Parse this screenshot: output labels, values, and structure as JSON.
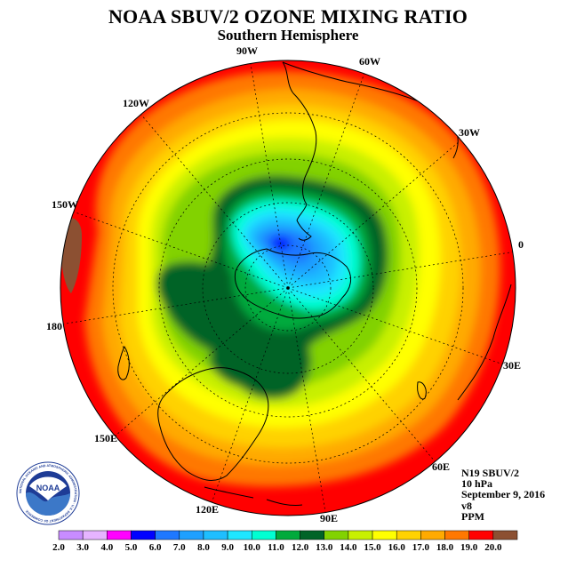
{
  "header": {
    "title": "NOAA SBUV/2 OZONE MIXING RATIO",
    "subtitle": "Southern Hemisphere"
  },
  "longitude_labels": [
    "90W",
    "60W",
    "30W",
    "0",
    "30E",
    "60E",
    "90E",
    "120E",
    "150E",
    "180",
    "150W",
    "120W"
  ],
  "info": {
    "satellite": "N19 SBUV/2",
    "level": "10 hPa",
    "date": "September 9, 2016",
    "version": "v8",
    "units": "PPM"
  },
  "logo": {
    "text": "NOAA",
    "ring_text": "NATIONAL OCEANIC AND ATMOSPHERIC ADMINISTRATION · U.S. DEPARTMENT OF COMMERCE"
  },
  "colorbar": {
    "labels": [
      "2.0",
      "3.0",
      "4.0",
      "5.0",
      "6.0",
      "7.0",
      "8.0",
      "9.0",
      "10.0",
      "11.0",
      "12.0",
      "13.0",
      "14.0",
      "15.0",
      "16.0",
      "17.0",
      "18.0",
      "19.0",
      "20.0"
    ],
    "colors": [
      "#c88cff",
      "#e6b4ff",
      "#ff00ff",
      "#0000ff",
      "#1e78ff",
      "#1ea0ff",
      "#1ebeff",
      "#1ee6ff",
      "#00ffd2",
      "#00aa3c",
      "#006428",
      "#82d200",
      "#c8f000",
      "#ffff00",
      "#ffd200",
      "#ffaa00",
      "#ff7800",
      "#ff0000",
      "#8c5032"
    ]
  }
}
